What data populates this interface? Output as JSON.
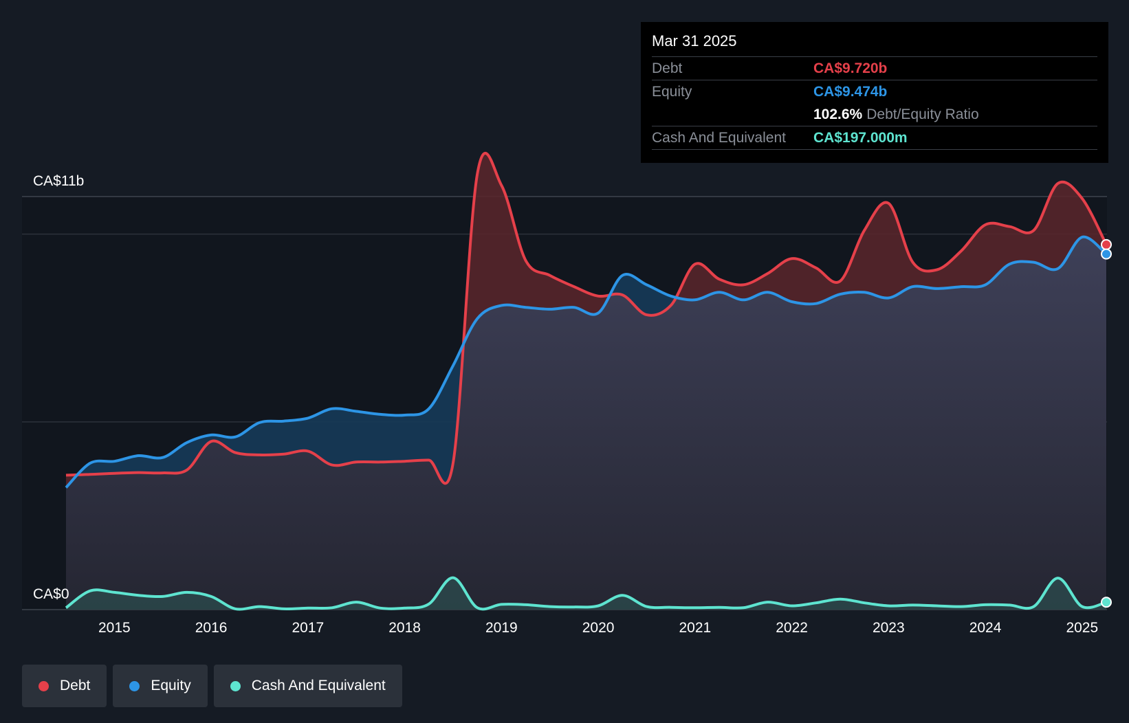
{
  "tooltip": {
    "date": "Mar 31 2025",
    "debt_label": "Debt",
    "debt_value": "CA$9.720b",
    "equity_label": "Equity",
    "equity_value": "CA$9.474b",
    "ratio_value": "102.6%",
    "ratio_label": "Debt/Equity Ratio",
    "cash_label": "Cash And Equivalent",
    "cash_value": "CA$197.000m"
  },
  "legend": [
    {
      "label": "Debt",
      "color": "#e5404a"
    },
    {
      "label": "Equity",
      "color": "#2d95e6"
    },
    {
      "label": "Cash And Equivalent",
      "color": "#5ee4d0"
    }
  ],
  "chart_data": {
    "type": "line",
    "title": "",
    "xlabel": "",
    "ylabel": "",
    "y_top_label": "CA$11b",
    "y_bottom_label": "CA$0",
    "ylim": [
      0,
      11
    ],
    "xlim": [
      2014.5,
      2025.25
    ],
    "x_ticks": [
      "2015",
      "2016",
      "2017",
      "2018",
      "2019",
      "2020",
      "2021",
      "2022",
      "2023",
      "2024",
      "2025"
    ],
    "x_tick_values": [
      2015,
      2016,
      2017,
      2018,
      2019,
      2020,
      2021,
      2022,
      2023,
      2024,
      2025
    ],
    "series": [
      {
        "name": "Debt",
        "color": "#e5404a",
        "x": [
          2014.5,
          2014.75,
          2015.0,
          2015.25,
          2015.5,
          2015.75,
          2016.0,
          2016.25,
          2016.5,
          2016.75,
          2017.0,
          2017.25,
          2017.5,
          2017.75,
          2018.0,
          2018.25,
          2018.5,
          2018.75,
          2019.0,
          2019.25,
          2019.5,
          2019.75,
          2020.0,
          2020.25,
          2020.5,
          2020.75,
          2021.0,
          2021.25,
          2021.5,
          2021.75,
          2022.0,
          2022.25,
          2022.5,
          2022.75,
          2023.0,
          2023.25,
          2023.5,
          2023.75,
          2024.0,
          2024.25,
          2024.5,
          2024.75,
          2025.0,
          2025.25
        ],
        "values": [
          3.58,
          3.6,
          3.63,
          3.65,
          3.64,
          3.72,
          4.48,
          4.18,
          4.12,
          4.14,
          4.22,
          3.85,
          3.93,
          3.93,
          3.95,
          3.98,
          3.91,
          11.6,
          11.3,
          9.3,
          8.9,
          8.6,
          8.35,
          8.38,
          7.85,
          8.1,
          9.2,
          8.8,
          8.65,
          8.95,
          9.35,
          9.1,
          8.75,
          10.1,
          10.82,
          9.25,
          9.05,
          9.55,
          10.25,
          10.2,
          10.1,
          11.35,
          10.95,
          9.72
        ]
      },
      {
        "name": "Equity",
        "color": "#2d95e6",
        "x": [
          2014.5,
          2014.75,
          2015.0,
          2015.25,
          2015.5,
          2015.75,
          2016.0,
          2016.25,
          2016.5,
          2016.75,
          2017.0,
          2017.25,
          2017.5,
          2017.75,
          2018.0,
          2018.25,
          2018.5,
          2018.75,
          2019.0,
          2019.25,
          2019.5,
          2019.75,
          2020.0,
          2020.25,
          2020.5,
          2020.75,
          2021.0,
          2021.25,
          2021.5,
          2021.75,
          2022.0,
          2022.25,
          2022.5,
          2022.75,
          2023.0,
          2023.25,
          2023.5,
          2023.75,
          2024.0,
          2024.25,
          2024.5,
          2024.75,
          2025.0,
          2025.25
        ],
        "values": [
          3.25,
          3.9,
          3.95,
          4.1,
          4.05,
          4.45,
          4.65,
          4.6,
          4.98,
          5.02,
          5.1,
          5.35,
          5.28,
          5.2,
          5.18,
          5.35,
          6.5,
          7.75,
          8.1,
          8.05,
          8.0,
          8.05,
          7.9,
          8.9,
          8.65,
          8.35,
          8.25,
          8.45,
          8.25,
          8.45,
          8.2,
          8.15,
          8.4,
          8.45,
          8.3,
          8.6,
          8.55,
          8.6,
          8.65,
          9.2,
          9.25,
          9.08,
          9.92,
          9.47
        ]
      },
      {
        "name": "Cash And Equivalent",
        "color": "#5ee4d0",
        "x": [
          2014.5,
          2014.75,
          2015.0,
          2015.25,
          2015.5,
          2015.75,
          2016.0,
          2016.25,
          2016.5,
          2016.75,
          2017.0,
          2017.25,
          2017.5,
          2017.75,
          2018.0,
          2018.25,
          2018.5,
          2018.75,
          2019.0,
          2019.25,
          2019.5,
          2019.75,
          2020.0,
          2020.25,
          2020.5,
          2020.75,
          2021.0,
          2021.25,
          2021.5,
          2021.75,
          2022.0,
          2022.25,
          2022.5,
          2022.75,
          2023.0,
          2023.25,
          2023.5,
          2023.75,
          2024.0,
          2024.25,
          2024.5,
          2024.75,
          2025.0,
          2025.25
        ],
        "values": [
          0.05,
          0.5,
          0.46,
          0.38,
          0.35,
          0.46,
          0.35,
          0.02,
          0.08,
          0.02,
          0.04,
          0.05,
          0.2,
          0.04,
          0.04,
          0.15,
          0.85,
          0.05,
          0.14,
          0.13,
          0.08,
          0.07,
          0.1,
          0.38,
          0.08,
          0.06,
          0.05,
          0.06,
          0.05,
          0.2,
          0.1,
          0.18,
          0.28,
          0.18,
          0.1,
          0.12,
          0.1,
          0.08,
          0.13,
          0.12,
          0.08,
          0.84,
          0.08,
          0.197
        ]
      }
    ]
  }
}
